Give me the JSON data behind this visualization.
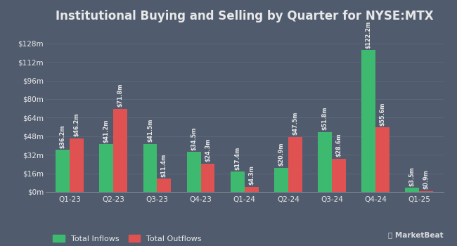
{
  "title": "Institutional Buying and Selling by Quarter for NYSE:MTX",
  "categories": [
    "Q1-23",
    "Q2-23",
    "Q3-23",
    "Q4-23",
    "Q1-24",
    "Q2-24",
    "Q3-24",
    "Q4-24",
    "Q1-25"
  ],
  "inflows": [
    36.2,
    41.2,
    41.5,
    34.5,
    17.4,
    20.9,
    51.8,
    122.2,
    3.5
  ],
  "outflows": [
    46.2,
    71.8,
    11.4,
    24.3,
    4.3,
    47.5,
    28.6,
    55.6,
    0.9
  ],
  "inflow_labels": [
    "$36.2m",
    "$41.2m",
    "$41.5m",
    "$34.5m",
    "$17.4m",
    "$20.9m",
    "$51.8m",
    "$122.2m",
    "$3.5m"
  ],
  "outflow_labels": [
    "$46.2m",
    "$71.8m",
    "$11.4m",
    "$24.3m",
    "$4.3m",
    "$47.5m",
    "$28.6m",
    "$55.6m",
    "$0.9m"
  ],
  "inflow_color": "#3dba6f",
  "outflow_color": "#e05252",
  "bg_color": "#505c6e",
  "text_color": "#e8e8e8",
  "grid_color": "#5e6a7a",
  "legend_inflow": "Total Inflows",
  "legend_outflow": "Total Outflows",
  "ytick_labels": [
    "$0m",
    "$16m",
    "$32m",
    "$48m",
    "$64m",
    "$80m",
    "$96m",
    "$112m",
    "$128m"
  ],
  "ytick_values": [
    0,
    16,
    32,
    48,
    64,
    80,
    96,
    112,
    128
  ],
  "ylim": [
    0,
    140
  ],
  "bar_width": 0.32,
  "title_fontsize": 12,
  "label_fontsize": 5.8,
  "tick_fontsize": 7.5,
  "legend_fontsize": 8
}
